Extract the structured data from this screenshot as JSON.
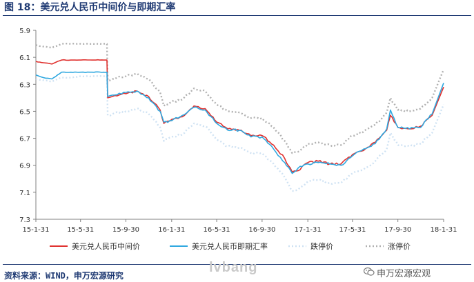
{
  "header": {
    "title": "图 18：美元兑人民币中间价与即期汇率"
  },
  "footer": {
    "source": "资料来源：WIND，申万宏源研究",
    "watermark": "lvbang",
    "brand": "申万宏源宏观",
    "brand_icon": "wechat-icon"
  },
  "colors": {
    "mid": "#e0312f",
    "spot": "#2fa8e0",
    "lower": "#cfe2f3",
    "upper": "#b0b0b0",
    "title": "#1f3a73",
    "axis": "#808080"
  },
  "chart_data": {
    "type": "line",
    "title": "美元兑人民币中间价与即期汇率",
    "y_inverted": true,
    "ylim": [
      5.9,
      7.3
    ],
    "yticks": [
      5.9,
      6.1,
      6.3,
      6.5,
      6.7,
      6.9,
      7.1,
      7.3
    ],
    "ytick_labels": [
      "5.9",
      "6.1",
      "6.3",
      "6.5",
      "6.7",
      "6.9",
      "7.1",
      "7.3"
    ],
    "xlim": [
      "2015-01-31",
      "2018-01-31"
    ],
    "xticks": [
      "2015-01-31",
      "2015-05-31",
      "2015-09-30",
      "2016-01-31",
      "2016-05-31",
      "2016-09-30",
      "2017-01-31",
      "2017-05-31",
      "2017-09-30",
      "2018-01-31"
    ],
    "xtick_labels": [
      "15-1-31",
      "15-5-31",
      "15-9-30",
      "16-1-31",
      "16-5-31",
      "16-9-30",
      "17-1-31",
      "17-5-31",
      "17-9-30",
      "18-1-31"
    ],
    "legend_position": "bottom",
    "x": [
      "2015-01-31",
      "2015-02-20",
      "2015-03-15",
      "2015-04-10",
      "2015-05-05",
      "2015-06-01",
      "2015-07-01",
      "2015-08-01",
      "2015-08-10",
      "2015-08-12",
      "2015-08-25",
      "2015-09-30",
      "2015-10-30",
      "2015-11-30",
      "2015-12-31",
      "2016-01-10",
      "2016-01-31",
      "2016-02-29",
      "2016-03-31",
      "2016-04-30",
      "2016-05-31",
      "2016-06-30",
      "2016-07-31",
      "2016-08-31",
      "2016-09-30",
      "2016-10-31",
      "2016-11-30",
      "2016-12-20",
      "2017-01-05",
      "2017-01-31",
      "2017-02-28",
      "2017-03-31",
      "2017-04-30",
      "2017-05-31",
      "2017-06-30",
      "2017-07-31",
      "2017-08-31",
      "2017-09-10",
      "2017-09-30",
      "2017-10-31",
      "2017-11-30",
      "2017-12-31",
      "2018-01-31"
    ],
    "series": [
      {
        "name": "美元兑人民币中间价",
        "values": [
          6.13,
          6.14,
          6.15,
          6.12,
          6.12,
          6.12,
          6.12,
          6.12,
          6.12,
          6.4,
          6.39,
          6.37,
          6.35,
          6.39,
          6.49,
          6.59,
          6.56,
          6.54,
          6.46,
          6.48,
          6.58,
          6.63,
          6.64,
          6.68,
          6.68,
          6.75,
          6.85,
          6.95,
          6.94,
          6.88,
          6.87,
          6.89,
          6.89,
          6.82,
          6.79,
          6.73,
          6.64,
          6.53,
          6.62,
          6.63,
          6.61,
          6.53,
          6.32
        ]
      },
      {
        "name": "美元兑人民币即期汇率",
        "values": [
          6.23,
          6.25,
          6.26,
          6.21,
          6.21,
          6.21,
          6.21,
          6.21,
          6.21,
          6.39,
          6.38,
          6.36,
          6.35,
          6.4,
          6.5,
          6.58,
          6.57,
          6.53,
          6.47,
          6.49,
          6.59,
          6.64,
          6.64,
          6.69,
          6.69,
          6.78,
          6.88,
          6.96,
          6.92,
          6.89,
          6.88,
          6.89,
          6.9,
          6.83,
          6.78,
          6.74,
          6.63,
          6.49,
          6.62,
          6.63,
          6.62,
          6.52,
          6.29
        ]
      },
      {
        "name": "跌停价",
        "values": [
          6.26,
          6.27,
          6.28,
          6.25,
          6.25,
          6.24,
          6.24,
          6.24,
          6.24,
          6.53,
          6.52,
          6.5,
          6.48,
          6.52,
          6.62,
          6.72,
          6.69,
          6.67,
          6.59,
          6.61,
          6.71,
          6.76,
          6.77,
          6.81,
          6.81,
          6.89,
          6.99,
          7.09,
          7.08,
          7.02,
          7.01,
          7.03,
          7.03,
          6.96,
          6.93,
          6.87,
          6.78,
          6.66,
          6.75,
          6.76,
          6.74,
          6.66,
          6.45
        ]
      },
      {
        "name": "涨停价",
        "values": [
          6.01,
          6.02,
          6.03,
          6.0,
          6.0,
          6.0,
          6.0,
          6.0,
          6.0,
          6.27,
          6.26,
          6.24,
          6.22,
          6.26,
          6.36,
          6.46,
          6.43,
          6.41,
          6.33,
          6.35,
          6.45,
          6.5,
          6.51,
          6.55,
          6.55,
          6.62,
          6.72,
          6.81,
          6.8,
          6.74,
          6.73,
          6.75,
          6.75,
          6.68,
          6.65,
          6.6,
          6.51,
          6.4,
          6.49,
          6.5,
          6.48,
          6.4,
          6.19
        ]
      }
    ]
  }
}
